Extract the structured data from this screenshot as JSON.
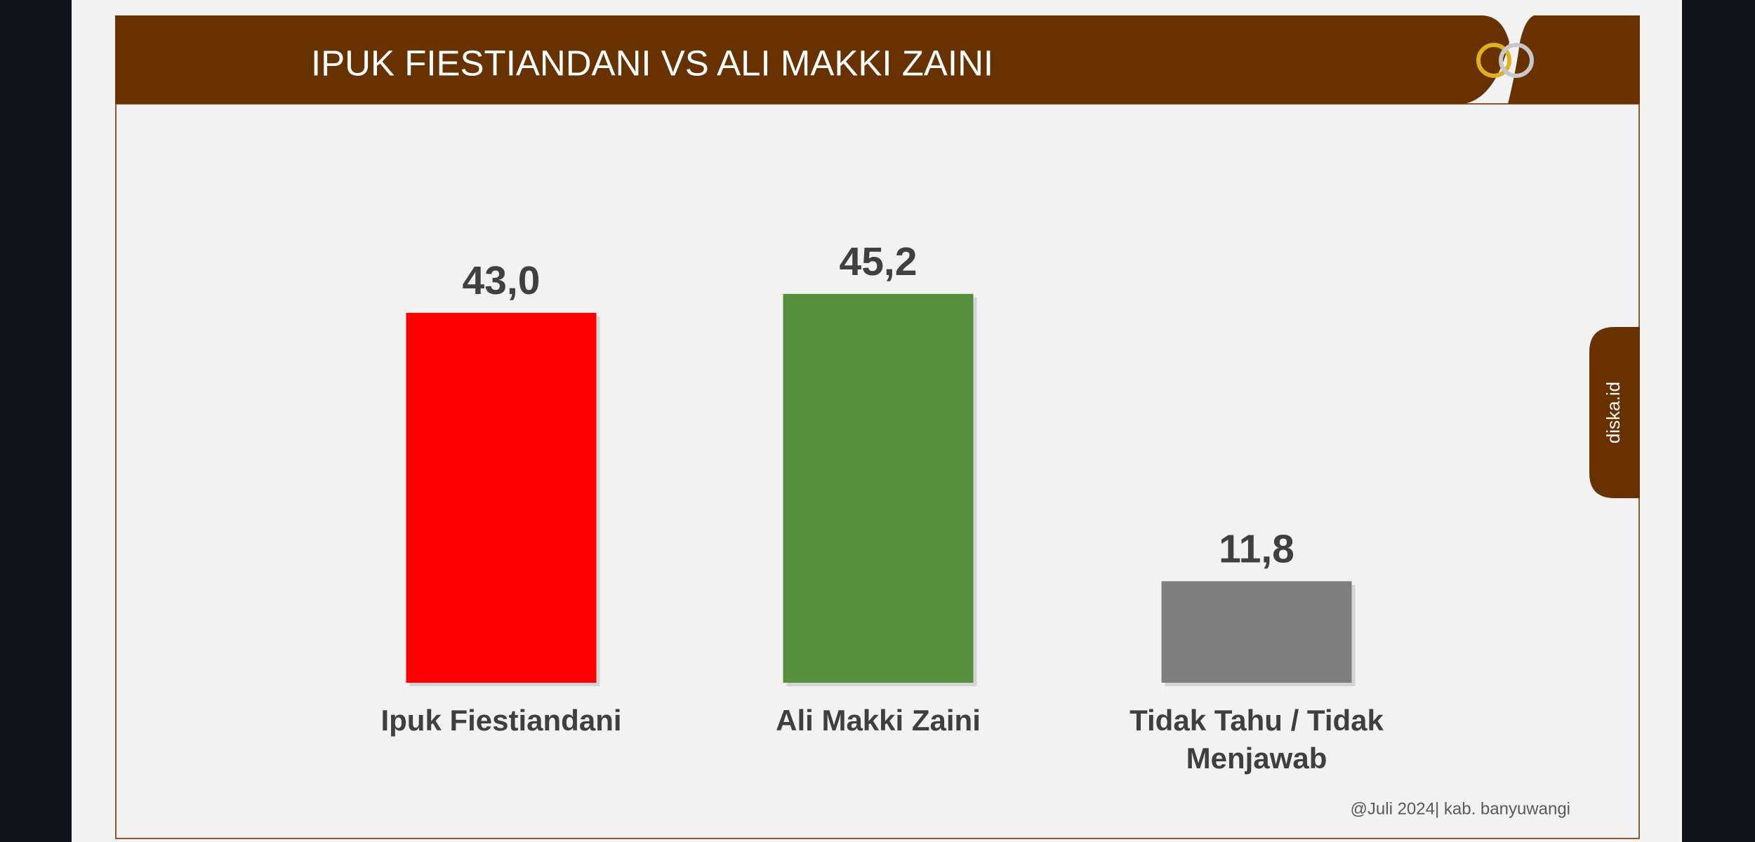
{
  "chart_data": {
    "type": "bar",
    "title": "IPUK FIESTIANDANI VS ALI MAKKI ZAINI",
    "categories": [
      "Ipuk Fiestiandani",
      "Ali Makki Zaini",
      "Tidak Tahu / Tidak Menjawab"
    ],
    "values": [
      43.0,
      45.2,
      11.8
    ],
    "value_labels": [
      "43,0",
      "45,2",
      "11,8"
    ],
    "colors": [
      "#ff0000",
      "#578f3f",
      "#7f7f7f"
    ],
    "source": "@Juli 2024| kab. banyuwangi",
    "watermark": "diska.id"
  }
}
